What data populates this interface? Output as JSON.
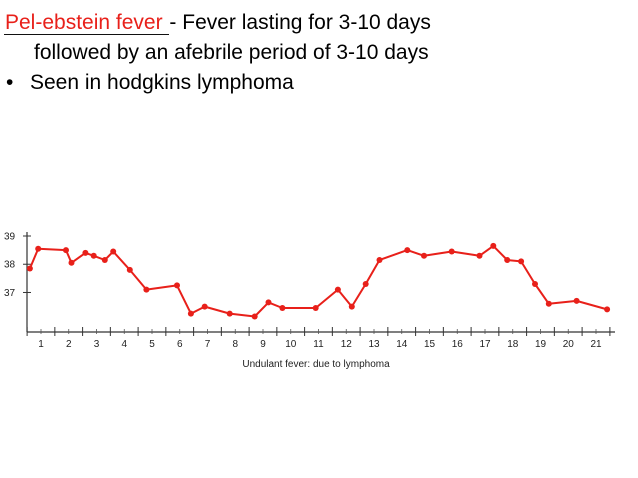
{
  "slide": {
    "term": "Pel-ebstein fever ",
    "definition": "- Fever lasting for 3-10 days",
    "definition_cont": "followed by an afebrile period of 3-10 days",
    "bullet_symbol": "•",
    "bullet_text": "Seen in hodgkins lymphoma",
    "term_color": "#e8201a"
  },
  "chart_data": {
    "type": "line",
    "title": "",
    "caption": "Undulant fever: due to lymphoma",
    "xlabel": "",
    "ylabel": "",
    "x_ticks": [
      "1",
      "2",
      "3",
      "4",
      "5",
      "6",
      "7",
      "8",
      "9",
      "10",
      "11",
      "12",
      "13",
      "14",
      "15",
      "16",
      "17",
      "18",
      "19",
      "20",
      "21"
    ],
    "y_ticks": [
      "39",
      "38",
      "37"
    ],
    "xlim": [
      0.5,
      21.5
    ],
    "ylim": [
      35.6,
      39
    ],
    "grid": false,
    "line_color": "#e8201a",
    "series": [
      {
        "x": [
          0.6,
          0.9,
          1.9,
          2.1,
          2.6,
          2.9,
          3.3,
          3.6,
          4.2,
          4.8,
          5.9,
          6.4,
          6.9,
          7.8,
          8.7,
          9.2,
          9.7,
          10.9,
          11.7,
          12.2,
          12.7,
          13.2,
          14.2,
          14.8,
          15.8,
          16.8,
          17.3,
          17.8,
          18.3,
          18.8,
          19.3,
          20.3,
          21.4
        ],
        "y": [
          37.85,
          38.55,
          38.5,
          38.05,
          38.4,
          38.3,
          38.15,
          38.45,
          37.8,
          37.1,
          37.25,
          36.25,
          36.5,
          36.25,
          36.15,
          36.65,
          36.45,
          36.45,
          37.1,
          36.5,
          37.3,
          38.15,
          38.5,
          38.3,
          38.45,
          38.3,
          38.65,
          38.15,
          38.1,
          37.3,
          36.6,
          36.7,
          36.4
        ]
      }
    ]
  }
}
